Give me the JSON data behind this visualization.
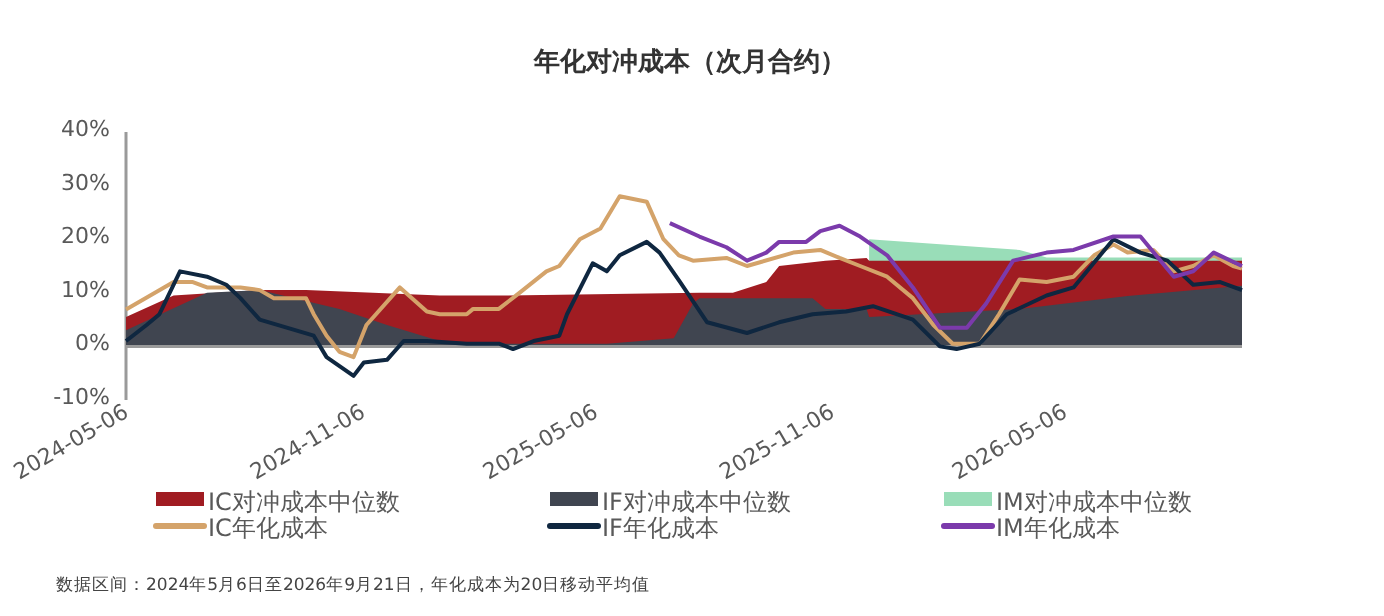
{
  "chart_data": {
    "type": "line",
    "title": "年化对冲成本（次月合约）",
    "annotations": [
      "数据区间：2024年5月6日至2026年9月21日，年化成本为20日移动平均值"
    ],
    "xlim": [
      "2024-05-06",
      "2026-09-21"
    ],
    "xticks": [
      {
        "value": "2024-05-06",
        "label": "2024-05-06"
      },
      {
        "value": "2024-11-06",
        "label": "2024-11-06"
      },
      {
        "value": "2025-05-06",
        "label": "2025-05-06"
      },
      {
        "value": "2025-11-06",
        "label": "2025-11-06"
      },
      {
        "value": "2026-05-06",
        "label": "2026-05-06"
      }
    ],
    "ylim": [
      -10,
      40
    ],
    "yticks": [
      {
        "value": -10,
        "label": "-10%"
      },
      {
        "value": 0,
        "label": "0%"
      },
      {
        "value": 10,
        "label": "10%"
      },
      {
        "value": 20,
        "label": "20%"
      },
      {
        "value": 30,
        "label": "30%"
      },
      {
        "value": 40,
        "label": "40%"
      }
    ],
    "legend": "bottom",
    "grid": false,
    "marker": "none",
    "series": [
      {
        "name": "IC对冲成本中位数",
        "type": "area",
        "color": "#a01c22",
        "x": [
          "2024-05-06",
          "2024-06-12",
          "2024-08-18",
          "2024-09-23",
          "2025-01-05",
          "2025-02-26",
          "2025-07-26",
          "2025-08-21",
          "2025-09-16",
          "2025-09-26",
          "2025-11-01",
          "2025-12-03",
          "2025-12-05",
          "2026-09-21"
        ],
        "values": [
          5.5,
          9.5,
          10.5,
          10.5,
          9.5,
          9.5,
          10,
          10,
          12,
          15,
          16,
          16.5,
          16,
          16
        ]
      },
      {
        "name": "IF对冲成本中位数",
        "type": "area",
        "color": "#404550",
        "x": [
          "2024-05-06",
          "2024-07-08",
          "2024-08-18",
          "2024-10-19",
          "2024-11-25",
          "2025-01-05",
          "2025-02-26",
          "2025-05-15",
          "2025-07-06",
          "2025-07-21",
          "2025-07-26",
          "2025-10-22",
          "2025-11-01",
          "2025-12-03",
          "2025-12-05",
          "2026-04-01",
          "2026-06-24",
          "2026-09-21"
        ],
        "values": [
          3,
          10,
          10.5,
          7,
          4,
          1,
          0.5,
          0.5,
          1.5,
          8,
          9,
          9,
          7,
          7,
          5.5,
          7,
          9.4,
          11.3
        ]
      },
      {
        "name": "IM对冲成本中位数",
        "type": "area",
        "color": "#99ddb8",
        "x": [
          "2025-12-05",
          "2026-04-01",
          "2026-04-22",
          "2026-09-21"
        ],
        "values": [
          20,
          18,
          16.6,
          16.6
        ]
      },
      {
        "name": "IC年化成本",
        "type": "line",
        "color": "#d4a36a",
        "x": [
          "2024-05-06",
          "2024-06-12",
          "2024-06-27",
          "2024-07-08",
          "2024-08-03",
          "2024-08-18",
          "2024-08-29",
          "2024-09-23",
          "2024-09-29",
          "2024-10-09",
          "2024-10-19",
          "2024-10-30",
          "2024-11-09",
          "2024-12-05",
          "2024-12-26",
          "2025-01-05",
          "2025-01-26",
          "2025-01-31",
          "2025-02-20",
          "2025-03-08",
          "2025-03-29",
          "2025-04-08",
          "2025-04-24",
          "2025-05-10",
          "2025-05-25",
          "2025-06-15",
          "2025-06-28",
          "2025-07-10",
          "2025-07-21",
          "2025-08-16",
          "2025-09-01",
          "2025-10-07",
          "2025-10-28",
          "2025-11-12",
          "2025-11-28",
          "2025-12-19",
          "2026-01-08",
          "2026-01-24",
          "2026-02-08",
          "2026-03-01",
          "2026-03-16",
          "2026-04-01",
          "2026-04-22",
          "2026-05-13",
          "2026-05-29",
          "2026-06-13",
          "2026-06-24",
          "2026-07-14",
          "2026-07-30",
          "2026-08-14",
          "2026-08-30",
          "2026-09-14",
          "2026-09-21"
        ],
        "values": [
          6.9,
          12,
          12,
          11,
          11,
          10.5,
          9,
          9,
          6,
          2,
          -1,
          -2,
          4,
          11,
          6.5,
          6,
          6,
          7,
          7,
          10,
          14,
          15,
          20,
          22,
          28,
          27,
          20,
          17,
          16,
          16.5,
          15,
          17.5,
          18,
          16.5,
          15,
          13,
          9,
          4,
          0.5,
          0.5,
          6,
          12.5,
          12,
          13,
          17,
          19,
          17.5,
          18,
          14,
          15,
          17,
          15,
          14.5
        ]
      },
      {
        "name": "IF年化成本",
        "type": "line",
        "color": "#0f2740",
        "x": [
          "2024-05-06",
          "2024-05-22",
          "2024-06-01",
          "2024-06-17",
          "2024-07-08",
          "2024-07-23",
          "2024-08-03",
          "2024-08-18",
          "2024-09-08",
          "2024-09-29",
          "2024-10-09",
          "2024-10-30",
          "2024-11-07",
          "2024-11-25",
          "2024-12-08",
          "2024-12-26",
          "2025-01-26",
          "2025-02-20",
          "2025-03-03",
          "2025-03-19",
          "2025-04-08",
          "2025-04-14",
          "2025-05-04",
          "2025-05-15",
          "2025-05-25",
          "2025-06-15",
          "2025-06-25",
          "2025-07-11",
          "2025-08-01",
          "2025-09-01",
          "2025-09-26",
          "2025-10-22",
          "2025-11-17",
          "2025-12-08",
          "2026-01-08",
          "2026-01-29",
          "2026-02-11",
          "2026-03-01",
          "2026-03-22",
          "2026-04-22",
          "2026-05-13",
          "2026-06-13",
          "2026-07-04",
          "2026-07-25",
          "2026-08-14",
          "2026-09-04",
          "2026-09-21"
        ],
        "values": [
          1,
          4,
          6,
          14,
          13,
          11.5,
          9,
          5,
          3.5,
          2,
          -2,
          -5.5,
          -3,
          -2.5,
          1,
          1,
          0.5,
          0.5,
          -0.5,
          1,
          2,
          6,
          15.5,
          14,
          17,
          19.5,
          17.5,
          12,
          4.5,
          2.5,
          4.5,
          6,
          6.5,
          7.5,
          5,
          0,
          -0.5,
          0.5,
          6,
          9.5,
          11,
          20,
          17.5,
          16,
          11.5,
          12,
          10.5
        ]
      },
      {
        "name": "IM年化成本",
        "type": "line",
        "color": "#7b3aab",
        "x": [
          "2025-07-03",
          "2025-07-26",
          "2025-08-16",
          "2025-09-01",
          "2025-09-16",
          "2025-09-26",
          "2025-10-17",
          "2025-10-28",
          "2025-11-12",
          "2025-11-28",
          "2025-12-19",
          "2026-01-08",
          "2026-01-29",
          "2026-02-19",
          "2026-03-06",
          "2026-03-27",
          "2026-04-22",
          "2026-05-13",
          "2026-06-13",
          "2026-07-04",
          "2026-07-30",
          "2026-08-14",
          "2026-08-30",
          "2026-09-21"
        ],
        "values": [
          23,
          20.5,
          18.5,
          16,
          17.5,
          19.5,
          19.5,
          21.5,
          22.5,
          20.5,
          17,
          11,
          3.5,
          3.5,
          8,
          16,
          17.5,
          18,
          20.5,
          20.5,
          13,
          14,
          17.5,
          15
        ]
      }
    ]
  }
}
